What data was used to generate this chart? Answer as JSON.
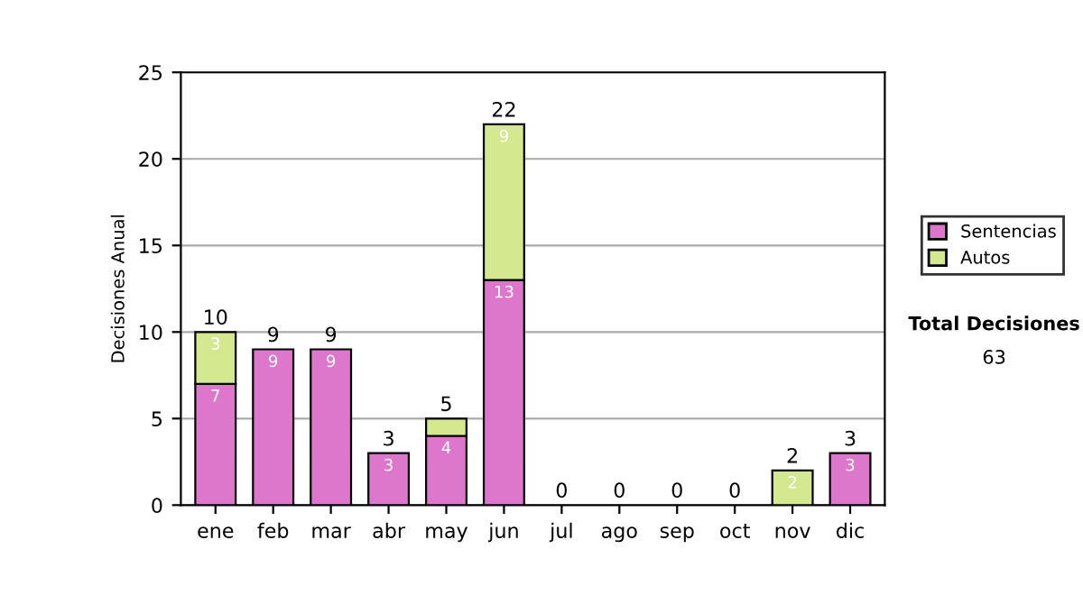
{
  "chart_data": {
    "type": "bar",
    "stacked": true,
    "ylabel": "Decisiones Anual",
    "categories": [
      "ene",
      "feb",
      "mar",
      "abr",
      "may",
      "jun",
      "jul",
      "ago",
      "sep",
      "oct",
      "nov",
      "dic"
    ],
    "series": [
      {
        "name": "Sentencias",
        "color": "#dd77cc",
        "values": [
          7,
          9,
          9,
          3,
          4,
          13,
          0,
          0,
          0,
          0,
          0,
          3
        ],
        "value_labels": [
          "7",
          "9",
          "9",
          "3",
          "4",
          "13",
          null,
          null,
          null,
          null,
          null,
          "3"
        ]
      },
      {
        "name": "Autos",
        "color": "#d4e890",
        "values": [
          3,
          0,
          0,
          0,
          1,
          9,
          0,
          0,
          0,
          0,
          2,
          0
        ],
        "value_labels": [
          "3",
          null,
          null,
          null,
          null,
          "9",
          null,
          null,
          null,
          null,
          "2",
          null
        ]
      }
    ],
    "totals": [
      "10",
      "9",
      "9",
      "3",
      "5",
      "22",
      "0",
      "0",
      "0",
      "0",
      "2",
      "3"
    ],
    "ylim": [
      0,
      25
    ],
    "yticks": [
      0,
      5,
      10,
      15,
      20,
      25
    ],
    "grid": "y",
    "legend": "right",
    "annotations": [
      "Total Decisiones",
      "63"
    ]
  }
}
